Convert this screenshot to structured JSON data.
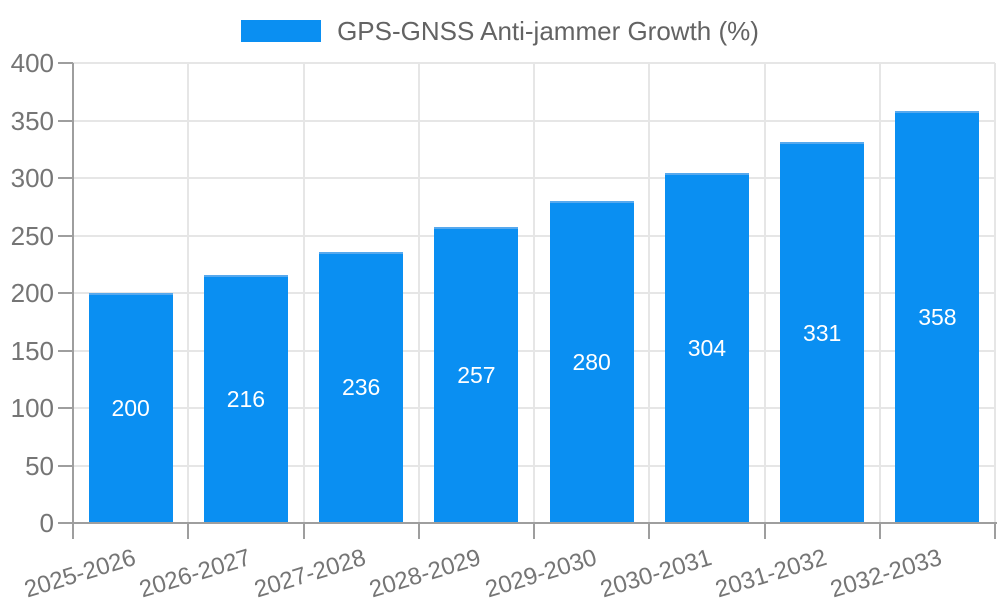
{
  "chart_data": {
    "type": "bar",
    "title": "GPS-GNSS Anti-jammer Growth (%)",
    "legend": "GPS-GNSS Anti-jammer Growth (%)",
    "legend_position": "top",
    "categories": [
      "2025-2026",
      "2026-2027",
      "2027-2028",
      "2028-2029",
      "2029-2030",
      "2030-2031",
      "2031-2032",
      "2032-2033"
    ],
    "values": [
      200,
      216,
      236,
      257,
      280,
      304,
      331,
      358
    ],
    "xlabel": "",
    "ylabel": "",
    "ylim": [
      0,
      400
    ],
    "yticks": [
      0,
      50,
      100,
      150,
      200,
      250,
      300,
      350,
      400
    ],
    "grid": true,
    "bar_value_labels": true,
    "x_label_rotation_deg": -17,
    "colors": {
      "bar": "#0a8ff2",
      "bar_stroke": "#57a9ee",
      "axis": "#9e9e9e",
      "grid": "#e6e6e6",
      "tick_text": "#757575",
      "legend_text": "#636363",
      "bar_label": "#ffffff",
      "background": "#ffffff"
    }
  }
}
